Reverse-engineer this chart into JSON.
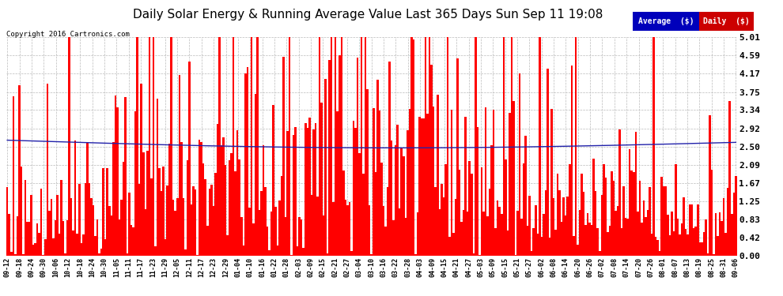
{
  "title": "Daily Solar Energy & Running Average Value Last 365 Days Sun Sep 11 19:08",
  "copyright": "Copyright 2016 Cartronics.com",
  "yticks": [
    0.0,
    0.42,
    0.83,
    1.25,
    1.67,
    2.09,
    2.5,
    2.92,
    3.34,
    3.75,
    4.17,
    4.59,
    5.01
  ],
  "ylim": [
    0,
    5.01
  ],
  "bar_color": "#FF0000",
  "avg_color": "#2222AA",
  "background_color": "#FFFFFF",
  "plot_bg_color": "#FFFFFF",
  "grid_color": "#BBBBBB",
  "title_fontsize": 11,
  "legend_avg_bg": "#0000BB",
  "legend_daily_bg": "#CC0000",
  "legend_text_color": "#FFFFFF",
  "n_bars": 365,
  "seed": 42,
  "x_tick_labels": [
    "09-12",
    "09-18",
    "09-24",
    "09-30",
    "10-06",
    "10-12",
    "10-18",
    "10-24",
    "10-30",
    "11-05",
    "11-11",
    "11-17",
    "11-23",
    "11-29",
    "12-05",
    "12-11",
    "12-17",
    "12-23",
    "12-29",
    "01-04",
    "01-10",
    "01-16",
    "01-22",
    "01-28",
    "02-03",
    "02-09",
    "02-15",
    "02-21",
    "02-27",
    "03-04",
    "03-10",
    "03-16",
    "03-22",
    "03-28",
    "04-03",
    "04-09",
    "04-15",
    "04-21",
    "04-27",
    "05-03",
    "05-09",
    "05-15",
    "05-21",
    "05-27",
    "06-02",
    "06-08",
    "06-14",
    "06-20",
    "06-26",
    "07-02",
    "07-08",
    "07-14",
    "07-20",
    "07-26",
    "08-01",
    "08-07",
    "08-13",
    "08-19",
    "08-25",
    "08-31",
    "09-06"
  ]
}
